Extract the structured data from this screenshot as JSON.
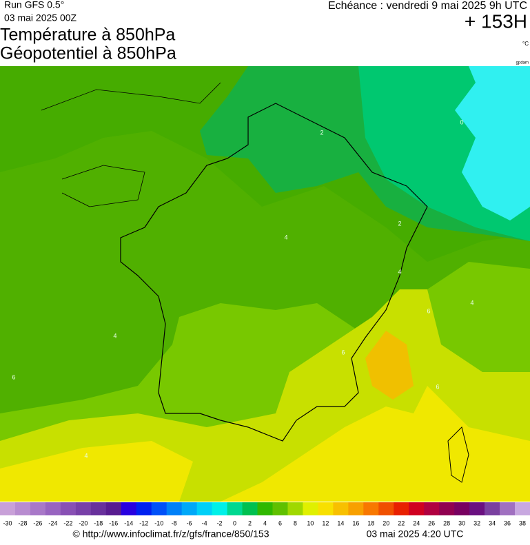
{
  "header": {
    "run": "Run GFS 0.5°",
    "run_date": "03 mai 2025 00Z",
    "title_line1": "Température à 850hPa",
    "title_line2": "Géopotentiel à 850hPa",
    "forecast_time": "Echéance : vendredi 9 mai 2025 9h UTC",
    "lead": "+ 153H",
    "unit": "°C",
    "geo_unit": "gpdam"
  },
  "map": {
    "contour_labels": [
      "2",
      "0",
      "2",
      "4",
      "4",
      "4",
      "4",
      "6",
      "6",
      "6",
      "6",
      "4"
    ]
  },
  "colorbar": {
    "ticks": [
      -30,
      -28,
      -26,
      -24,
      -22,
      -20,
      -18,
      -16,
      -14,
      -12,
      -10,
      -8,
      -6,
      -4,
      -2,
      0,
      2,
      4,
      6,
      8,
      10,
      12,
      14,
      16,
      18,
      20,
      22,
      24,
      26,
      28,
      30,
      32,
      34,
      36,
      38
    ],
    "colors": [
      "#c8a0d8",
      "#b88cd0",
      "#a878c8",
      "#9864c0",
      "#8850b4",
      "#7840a8",
      "#68309c",
      "#581c90",
      "#2800e0",
      "#0020f0",
      "#0050f8",
      "#0080f8",
      "#00a8f8",
      "#00d0f8",
      "#00f0e8",
      "#00d890",
      "#00c050",
      "#30b800",
      "#60c000",
      "#a0d800",
      "#e0f000",
      "#f8e000",
      "#f8c000",
      "#f8a000",
      "#f87800",
      "#f05000",
      "#e82000",
      "#d00020",
      "#b00040",
      "#900050",
      "#780060",
      "#6a1080",
      "#7a40a0",
      "#a070c0",
      "#c8a8e0"
    ]
  },
  "footer": {
    "url": "© http://www.infoclimat.fr/z/gfs/france/850/153",
    "generated": "03 mai 2025  4:20 UTC"
  }
}
